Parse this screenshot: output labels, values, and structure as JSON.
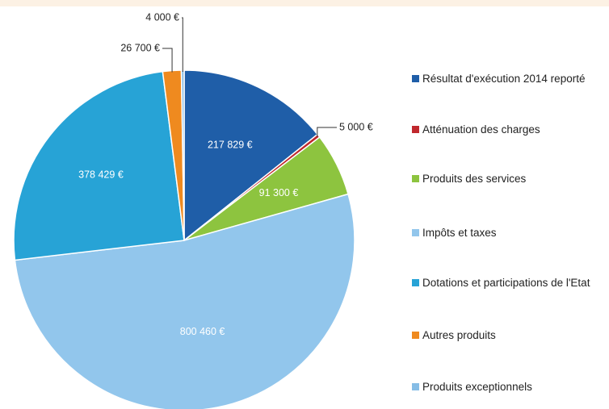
{
  "chart_data": {
    "type": "pie",
    "categories": [
      "Résultat d'exécution 2014 reporté",
      "Atténuation des charges",
      "Produits des services",
      "Impôts et taxes",
      "Dotations et participations de l'Etat",
      "Autres produits",
      "Produits exceptionnels"
    ],
    "values": [
      217829,
      5000,
      91300,
      800460,
      378429,
      26700,
      4000
    ],
    "value_labels": [
      "217 829 €",
      "5 000 €",
      "91 300 €",
      "800 460 €",
      "378 429 €",
      "26 700 €",
      "4 000 €"
    ],
    "colors": [
      "#1f5ea8",
      "#c0282d",
      "#8dc43f",
      "#92c6ec",
      "#27a3d6",
      "#ef8a1f",
      "#86bde6"
    ],
    "legend": "right"
  }
}
